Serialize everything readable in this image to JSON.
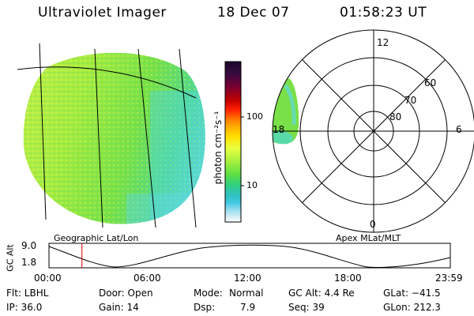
{
  "header": {
    "instrument": "Ultraviolet Imager",
    "date": "18 Dec 07",
    "time": "01:58:23 UT"
  },
  "colorbar": {
    "unit_label": "photon cm⁻²s⁻¹",
    "ticks": [
      "100",
      "10"
    ],
    "colors": [
      "#1a0a2e",
      "#3a0a40",
      "#7a0030",
      "#c00000",
      "#ff2000",
      "#ff7a00",
      "#ffb000",
      "#ffe000",
      "#e8ff40",
      "#a8f040",
      "#60e040",
      "#30d080",
      "#30c0c0",
      "#40c8e0",
      "#a0e0f0",
      "#d8eef4",
      "#ffffff"
    ]
  },
  "geo_panel": {
    "label": "Geographic Lat/Lon"
  },
  "polar_panel": {
    "label": "Apex MLat/MLT",
    "mlt_labels": {
      "top": "12",
      "left": "18",
      "right": "6",
      "bottom": "0"
    },
    "lat_labels": [
      "60",
      "70",
      "80"
    ]
  },
  "altitude_plot": {
    "ylabel": "GC Alt",
    "yticks": [
      "9.0",
      "1.8"
    ],
    "xticks": [
      "00:00",
      "06:00",
      "12:00",
      "18:00",
      "23:59"
    ],
    "marker_hour": 1.97
  },
  "info": {
    "filter": "Flt: LBHL",
    "door": "Door: Open",
    "mode_label": "Mode:",
    "mode_value": "Normal",
    "gc_alt": "GC Alt: 4.4 Re",
    "glat": "GLat: −41.5",
    "ip": "IP: 36.0",
    "gain": "Gain: 14",
    "dsp_label": "Dsp:",
    "dsp_value": "7.9",
    "seq": "Seq: 39",
    "glon": "GLon: 212.3"
  }
}
